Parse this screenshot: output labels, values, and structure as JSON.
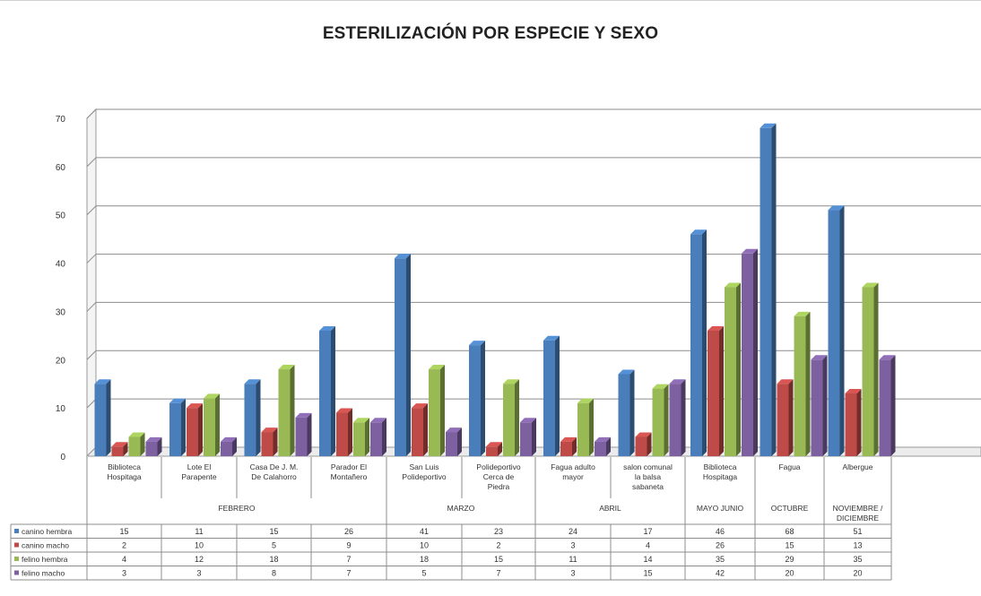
{
  "chart_data": {
    "type": "bar",
    "title": "ESTERILIZACIÓN POR ESPECIE Y SEXO",
    "ylim": [
      0,
      70
    ],
    "yticks": [
      0,
      10,
      20,
      30,
      40,
      50,
      60,
      70
    ],
    "grid": true,
    "legend": "data-table-left",
    "categories": [
      [
        "Biblioteca",
        "Hospitaga"
      ],
      [
        "Lote El",
        "Parapente"
      ],
      [
        "Casa De J. M.",
        "De Calahorro"
      ],
      [
        "Parador El",
        "Montañero"
      ],
      [
        "San Luis",
        "Polideportivo"
      ],
      [
        "Polideportivo",
        "Cerca de",
        "Piedra"
      ],
      [
        "Fagua adulto",
        "mayor"
      ],
      [
        "salon comunal",
        "la balsa",
        "sabaneta"
      ],
      [
        "Biblioteca",
        "Hospitaga"
      ],
      [
        "Fagua"
      ],
      [
        "Albergue"
      ]
    ],
    "groups": [
      {
        "label": "FEBRERO",
        "categories": [
          0,
          1,
          2,
          3
        ]
      },
      {
        "label": "MARZO",
        "categories": [
          4,
          5
        ]
      },
      {
        "label": "ABRIL",
        "categories": [
          6,
          7
        ]
      },
      {
        "label": "MAYO JUNIO",
        "categories": [
          8
        ]
      },
      {
        "label": "OCTUBRE",
        "categories": [
          9
        ]
      },
      {
        "label": [
          "NOVIEMBRE /",
          "DICIEMBRE"
        ],
        "categories": [
          10
        ]
      }
    ],
    "series": [
      {
        "name": "canino hembra",
        "color": "#4a7ebb",
        "values": [
          15,
          11,
          15,
          26,
          41,
          23,
          24,
          17,
          46,
          68,
          51
        ]
      },
      {
        "name": "canino macho",
        "color": "#be4b48",
        "values": [
          2,
          10,
          5,
          9,
          10,
          2,
          3,
          4,
          26,
          15,
          13
        ]
      },
      {
        "name": "felino hembra",
        "color": "#98b954",
        "values": [
          4,
          12,
          18,
          7,
          18,
          15,
          11,
          14,
          35,
          29,
          35
        ]
      },
      {
        "name": "felino macho",
        "color": "#7d60a0",
        "values": [
          3,
          3,
          8,
          7,
          5,
          7,
          3,
          15,
          42,
          20,
          20
        ]
      }
    ]
  }
}
